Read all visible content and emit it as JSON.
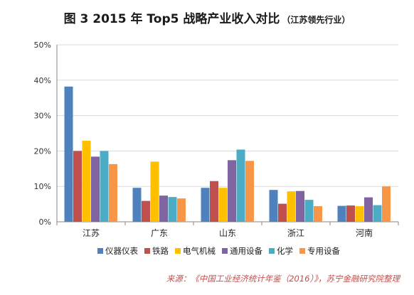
{
  "title": {
    "main": "图 3  2015 年 Top5 战略产业收入对比",
    "sub": "（江苏领先行业）"
  },
  "source": "来源：《中国工业经济统计年鉴（2016）》，苏宁金融研究院整理",
  "colors": [
    "#4f81bd",
    "#c0504d",
    "#ffc000",
    "#8064a2",
    "#4bacc6",
    "#f79646"
  ],
  "chart_data": {
    "type": "bar",
    "categories": [
      "江苏",
      "广东",
      "山东",
      "浙江",
      "河南"
    ],
    "ylim": [
      0,
      50
    ],
    "yticks": [
      0,
      10,
      20,
      30,
      40,
      50
    ],
    "ytick_labels": [
      "0%",
      "10%",
      "20%",
      "30%",
      "40%",
      "50%"
    ],
    "grid": true,
    "legend_position": "bottom",
    "series": [
      {
        "name": "仪器仪表",
        "values": [
          38.2,
          9.6,
          9.6,
          9.0,
          4.5
        ]
      },
      {
        "name": "铁路",
        "values": [
          20.0,
          5.9,
          11.5,
          5.1,
          4.6
        ]
      },
      {
        "name": "电气机械",
        "values": [
          22.9,
          17.0,
          9.6,
          8.6,
          4.4
        ]
      },
      {
        "name": "通用设备",
        "values": [
          18.4,
          7.4,
          17.4,
          8.7,
          6.9
        ]
      },
      {
        "name": "化学",
        "values": [
          20.0,
          7.0,
          20.4,
          6.2,
          4.7
        ]
      },
      {
        "name": "专用设备",
        "values": [
          16.3,
          6.6,
          17.2,
          4.4,
          10.0
        ]
      }
    ]
  }
}
